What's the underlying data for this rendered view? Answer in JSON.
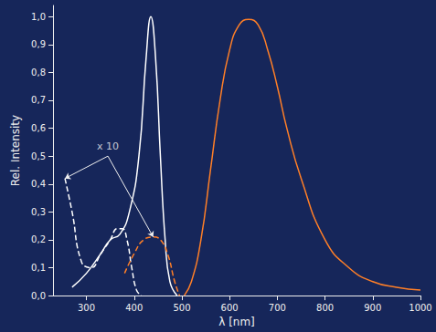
{
  "chart_data": {
    "type": "line",
    "x_label": "λ [nm]",
    "y_label": "Rel. Intensity",
    "xlim": [
      230,
      1000
    ],
    "xticks": [
      300,
      400,
      500,
      600,
      700,
      800,
      900,
      1000
    ],
    "ylim": [
      0,
      1.04
    ],
    "yticks": [
      {
        "value": 0,
        "label": "0,0"
      },
      {
        "value": 0.1,
        "label": "0,1"
      },
      {
        "value": 0.2,
        "label": "0,2"
      },
      {
        "value": 0.3,
        "label": "0,3"
      },
      {
        "value": 0.4,
        "label": "0,4"
      },
      {
        "value": 0.5,
        "label": "0,5"
      },
      {
        "value": 0.6,
        "label": "0,6"
      },
      {
        "value": 0.7,
        "label": "0,7"
      },
      {
        "value": 0.8,
        "label": "0,8"
      },
      {
        "value": 0.9,
        "label": "0,9"
      },
      {
        "value": 1.0,
        "label": "1,0"
      }
    ],
    "grid": false,
    "annotations": [
      {
        "text": "x 10",
        "x": 345,
        "y": 0.5
      }
    ],
    "series": [
      {
        "color": "#ffffff",
        "line_style": "dashed",
        "x": [
          255,
          270,
          290,
          310,
          330,
          350,
          365,
          375,
          385,
          395,
          405,
          415
        ],
        "values": [
          0.42,
          0.3,
          0.12,
          0.1,
          0.15,
          0.2,
          0.24,
          0.24,
          0.2,
          0.1,
          0.02,
          0.0
        ]
      },
      {
        "color": "#ffffff",
        "line_style": "solid",
        "x": [
          270,
          300,
          330,
          350,
          370,
          390,
          410,
          425,
          435,
          445,
          455,
          465,
          475,
          490
        ],
        "values": [
          0.03,
          0.08,
          0.15,
          0.2,
          0.22,
          0.3,
          0.5,
          0.85,
          1.0,
          0.85,
          0.5,
          0.2,
          0.05,
          0.0
        ]
      },
      {
        "color": "#ff7f27",
        "line_style": "dashed",
        "x": [
          380,
          400,
          420,
          440,
          455,
          470,
          485,
          495
        ],
        "values": [
          0.08,
          0.15,
          0.2,
          0.21,
          0.2,
          0.15,
          0.05,
          0.0
        ]
      },
      {
        "color": "#ff7f27",
        "line_style": "solid",
        "x": [
          505,
          520,
          540,
          560,
          580,
          600,
          620,
          640,
          660,
          680,
          700,
          720,
          750,
          800,
          850,
          900,
          950,
          1000
        ],
        "values": [
          0.0,
          0.05,
          0.2,
          0.45,
          0.7,
          0.88,
          0.97,
          0.99,
          0.97,
          0.88,
          0.75,
          0.6,
          0.42,
          0.2,
          0.1,
          0.05,
          0.03,
          0.02
        ]
      }
    ]
  }
}
